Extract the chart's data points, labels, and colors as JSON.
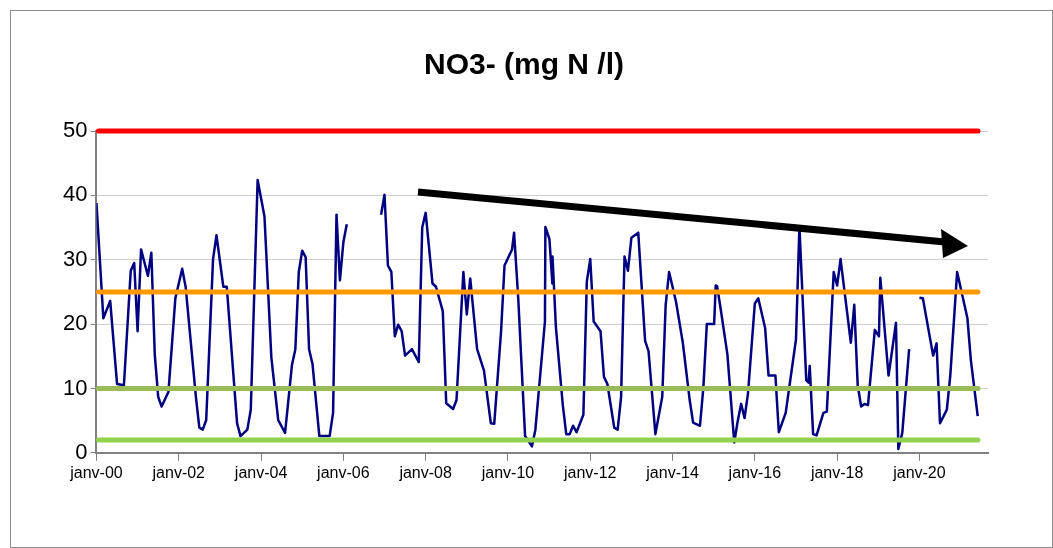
{
  "chart_data": {
    "type": "line",
    "title": "NO3- (mg N /l)",
    "series": [
      {
        "color": "#000080",
        "x": [
          "2000-01",
          "2000-03",
          "2000-05",
          "2000-07",
          "2000-09",
          "2000-11",
          "2000-12",
          "2001-01",
          "2001-02",
          "2001-04",
          "2001-05",
          "2001-06",
          "2001-07",
          "2001-08",
          "2001-10",
          "2001-12",
          "2002-02",
          "2002-03",
          "2002-06",
          "2002-07",
          "2002-08",
          "2002-09",
          "2002-11",
          "2002-12",
          "2003-02",
          "2003-03",
          "2003-06",
          "2003-07",
          "2003-09",
          "2003-10",
          "2003-12",
          "2004-02",
          "2004-04",
          "2004-06",
          "2004-08",
          "2004-10",
          "2004-11",
          "2004-12",
          "2005-01",
          "2005-02",
          "2005-03",
          "2005-04",
          "2005-06",
          "2005-09",
          "2005-10",
          "2005-11",
          "2005-12",
          "2006-01",
          "2006-02",
          "2006-07",
          "2006-12",
          "2007-01",
          "2007-02",
          "2007-03",
          "2007-04",
          "2007-05",
          "2007-06",
          "2007-07",
          "2007-09",
          "2007-11",
          "2007-12",
          "2008-01",
          "2008-03",
          "2008-04",
          "2008-06",
          "2008-07",
          "2008-09",
          "2008-10",
          "2008-12",
          "2009-01",
          "2009-02",
          "2009-04",
          "2009-06",
          "2009-08",
          "2009-09",
          "2009-11",
          "2009-12",
          "2010-02-07",
          "2010-02-25",
          "2010-04",
          "2010-06",
          "2010-08",
          "2010-09",
          "2010-11-25",
          "2010-11-29",
          "2011-01-04",
          "2011-01-30",
          "2011-02",
          "2011-03",
          "2011-05",
          "2011-06",
          "2011-07",
          "2011-08",
          "2011-09",
          "2011-11",
          "2011-12",
          "2012-01",
          "2012-02",
          "2012-04",
          "2012-05",
          "2012-06",
          "2012-08",
          "2012-09",
          "2012-10",
          "2012-11",
          "2012-12",
          "2013-01",
          "2013-03",
          "2013-05",
          "2013-06",
          "2013-08",
          "2013-10",
          "2013-11",
          "2013-12",
          "2014-02",
          "2014-04",
          "2014-06",
          "2014-07",
          "2014-09",
          "2014-10",
          "2014-11",
          "2015-01-05",
          "2015-01-19",
          "2015-02",
          "2015-03",
          "2015-05",
          "2015-07",
          "2015-08",
          "2015-09",
          "2015-10",
          "2015-11",
          "2016-01",
          "2016-02",
          "2016-04",
          "2016-05",
          "2016-07",
          "2016-08",
          "2016-10",
          "2017-01",
          "2017-02",
          "2017-04-01",
          "2017-04-22",
          "2017-05",
          "2017-06",
          "2017-07",
          "2017-09",
          "2017-10",
          "2017-12",
          "2018-01",
          "2018-02",
          "2018-05",
          "2018-06",
          "2018-07",
          "2018-08",
          "2018-09",
          "2018-10",
          "2018-12",
          "2019-01-07",
          "2019-01-19",
          "2019-04",
          "2019-06-06",
          "2019-06-27",
          "2019-08",
          "2019-10",
          "2019-12",
          "2020-01",
          "2020-02",
          "2020-05",
          "2020-06",
          "2020-07",
          "2020-09",
          "2020-10",
          "2020-12",
          "2021-03",
          "2021-04",
          "2021-06"
        ],
        "values": [
          38.8,
          20.9,
          23.6,
          10.7,
          10.5,
          28.3,
          29.5,
          18.9,
          31.6,
          27.5,
          31.1,
          15.3,
          8.7,
          7.2,
          9.5,
          24.0,
          28.6,
          25.8,
          8.7,
          3.9,
          3.6,
          5.1,
          30.1,
          33.8,
          25.8,
          25.8,
          4.6,
          2.6,
          3.6,
          6.7,
          42.4,
          36.7,
          14.8,
          5.1,
          3.1,
          13.6,
          16.1,
          28.1,
          31.4,
          30.4,
          16.1,
          13.8,
          2.6,
          2.6,
          6.2,
          37.0,
          26.8,
          32.7,
          35.5,
          null,
          37.0,
          40.1,
          29.1,
          28.1,
          18.1,
          19.9,
          18.9,
          15.1,
          16.1,
          14.1,
          35.0,
          37.3,
          26.3,
          25.8,
          22.0,
          7.7,
          6.8,
          8.2,
          28.1,
          21.5,
          27.1,
          16.1,
          12.8,
          4.6,
          4.5,
          18.9,
          29.1,
          31.6,
          34.2,
          24.0,
          2.6,
          1.0,
          3.6,
          20.4,
          35.1,
          33.2,
          26.3,
          30.5,
          19.4,
          7.4,
          2.9,
          2.9,
          4.2,
          3.2,
          5.9,
          26.6,
          30.1,
          20.4,
          18.9,
          11.8,
          10.7,
          3.9,
          3.6,
          8.7,
          30.5,
          28.3,
          33.4,
          34.2,
          17.4,
          15.8,
          2.9,
          8.7,
          23.0,
          28.1,
          23.5,
          17.1,
          8.2,
          4.7,
          4.2,
          10.2,
          20.0,
          20.0,
          26.0,
          25.9,
          22.5,
          15.3,
          1.6,
          4.9,
          7.6,
          5.4,
          9.2,
          23.2,
          24.0,
          19.4,
          12.0,
          12.0,
          3.2,
          6.2,
          17.6,
          35.2,
          11.3,
          10.9,
          13.5,
          2.9,
          2.7,
          6.2,
          6.4,
          28.1,
          26.0,
          30.1,
          17.1,
          23.0,
          10.5,
          7.2,
          7.6,
          7.4,
          19.1,
          18.1,
          27.2,
          12.0,
          20.2,
          0.6,
          3.1,
          16.1,
          null,
          24.1,
          24.0,
          15.1,
          17.0,
          4.6,
          6.7,
          12.0,
          28.1,
          20.9,
          14.4,
          5.7
        ]
      }
    ],
    "xlim": [
      "2000-01",
      "2021-09"
    ],
    "xticks": [
      {
        "value": "2000-01",
        "label": "janv-00"
      },
      {
        "value": "2002-01",
        "label": "janv-02"
      },
      {
        "value": "2004-01",
        "label": "janv-04"
      },
      {
        "value": "2006-01",
        "label": "janv-06"
      },
      {
        "value": "2008-01",
        "label": "janv-08"
      },
      {
        "value": "2010-01",
        "label": "janv-10"
      },
      {
        "value": "2012-01",
        "label": "janv-12"
      },
      {
        "value": "2014-01",
        "label": "janv-14"
      },
      {
        "value": "2016-01",
        "label": "janv-16"
      },
      {
        "value": "2018-01",
        "label": "janv-18"
      },
      {
        "value": "2020-01",
        "label": "janv-20"
      }
    ],
    "ylim": [
      0,
      50
    ],
    "yticks": [
      0,
      10,
      20,
      30,
      40,
      50
    ],
    "grid": "y",
    "marker": "none",
    "line_style": "solid",
    "ref_lines": [
      {
        "axis": "y",
        "value": 50,
        "color": "#ff0000"
      },
      {
        "axis": "y",
        "value": 25,
        "color": "#ff9900"
      },
      {
        "axis": "y",
        "value": 10,
        "color": "#9bbb59"
      },
      {
        "axis": "y",
        "value": 2,
        "color": "#92d050"
      }
    ]
  }
}
